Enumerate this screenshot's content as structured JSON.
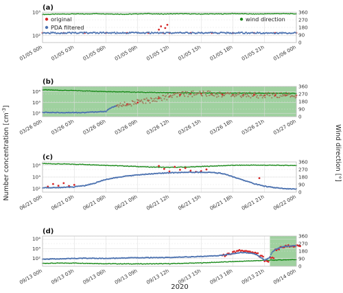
{
  "figure": {
    "year_label": "2020",
    "left_axis_title": "Number concentration [cm",
    "left_axis_title_sup": "-3",
    "left_axis_title_end": "]",
    "right_axis_title": "Wind direction [°]"
  },
  "colors": {
    "original": "#d62728",
    "filtered": "#4c72b0",
    "wind": "#1a8a1a",
    "shade": "#7fc27f",
    "grid": "#dcdcdc",
    "frame": "#bdbdbd"
  },
  "legend": {
    "original": "original",
    "filtered": "PDA filtered",
    "wind": "wind direction"
  },
  "chart_data": [
    {
      "type": "scatter",
      "panel": "(a)",
      "x_ticks": [
        "01/05 00h",
        "01/05 03h",
        "01/05 06h",
        "01/05 09h",
        "01/05 12h",
        "01/05 15h",
        "01/05 18h",
        "01/05 21h",
        "01/06 00h"
      ],
      "y_scale": "log",
      "ylim": [
        50,
        1000
      ],
      "y_ticks": [
        "10²",
        "10³"
      ],
      "y_tick_values": [
        100,
        1000
      ],
      "y2lim": [
        0,
        360
      ],
      "y2_ticks": [
        0,
        90,
        180,
        270,
        360
      ],
      "legend_position": "upper",
      "shaded": [],
      "series": [
        {
          "name": "original",
          "x": [
            0,
            2,
            4,
            6,
            8,
            10,
            11.0,
            11.2,
            11.4,
            11.6,
            11.8,
            12,
            14,
            16,
            18,
            20,
            22,
            24
          ],
          "y": [
            130,
            130,
            130,
            130,
            130,
            130,
            180,
            250,
            130,
            210,
            290,
            130,
            130,
            130,
            130,
            130,
            130,
            130
          ]
        },
        {
          "name": "PDA filtered",
          "x": [
            0,
            2,
            4,
            6,
            8,
            10,
            11,
            12,
            14,
            16,
            18,
            20,
            22,
            24
          ],
          "y": [
            130,
            130,
            130,
            130,
            130,
            130,
            130,
            130,
            130,
            130,
            130,
            130,
            130,
            130
          ]
        },
        {
          "name": "wind direction",
          "x": [
            0,
            1,
            2,
            3,
            4,
            5,
            6,
            7,
            8,
            9,
            10,
            11,
            12,
            13,
            14,
            15,
            16,
            17,
            18,
            19,
            20,
            21,
            22,
            23,
            24
          ],
          "y": [
            335,
            338,
            340,
            342,
            340,
            345,
            342,
            340,
            338,
            342,
            345,
            340,
            342,
            344,
            342,
            340,
            342,
            341,
            345,
            343,
            340,
            342,
            345,
            344,
            342
          ]
        }
      ]
    },
    {
      "type": "scatter",
      "panel": "(b)",
      "x_ticks": [
        "03/26 00h",
        "03/26 03h",
        "03/26 06h",
        "03/26 09h",
        "03/26 12h",
        "03/26 15h",
        "03/26 18h",
        "03/26 21h",
        "03/27 00h"
      ],
      "y_scale": "log",
      "ylim": [
        50,
        30000
      ],
      "y_ticks": [
        "10²",
        "10³",
        "10⁴"
      ],
      "y_tick_values": [
        100,
        1000,
        10000
      ],
      "y2lim": [
        0,
        360
      ],
      "y2_ticks": [
        0,
        90,
        180,
        270,
        360
      ],
      "shaded": [
        [
          0,
          24
        ]
      ],
      "series": [
        {
          "name": "original",
          "x": [
            7,
            8,
            9,
            10,
            11,
            12,
            13,
            14,
            15,
            16,
            17,
            18,
            19,
            20,
            21,
            22,
            23,
            24
          ],
          "y": [
            500,
            700,
            1000,
            1500,
            2500,
            3500,
            5000,
            6000,
            6500,
            6000,
            5500,
            5000,
            5000,
            5000,
            4500,
            4500,
            4500,
            4500
          ]
        },
        {
          "name": "PDA filtered",
          "x": [
            0,
            2,
            4,
            6,
            7,
            8,
            9,
            10,
            11,
            12,
            13,
            14,
            15,
            16,
            17,
            18,
            19,
            20,
            21,
            22,
            23,
            24
          ],
          "y": [
            120,
            120,
            120,
            150,
            500,
            700,
            1000,
            1500,
            2500,
            3500,
            5000,
            6000,
            6500,
            6000,
            5500,
            5000,
            5000,
            5000,
            4500,
            4500,
            4500,
            4500
          ]
        },
        {
          "name": "wind direction",
          "x": [
            0,
            3,
            6,
            9,
            12,
            15,
            18,
            21,
            24
          ],
          "y": [
            320,
            310,
            300,
            292,
            286,
            282,
            280,
            278,
            276
          ]
        }
      ]
    },
    {
      "type": "scatter",
      "panel": "(c)",
      "x_ticks": [
        "06/21 00h",
        "06/21 03h",
        "06/21 06h",
        "06/21 09h",
        "06/21 12h",
        "06/21 15h",
        "06/21 18h",
        "06/21 21h",
        "06/22 00h"
      ],
      "y_scale": "log",
      "ylim": [
        50,
        20000
      ],
      "y_ticks": [
        "10²",
        "10³",
        "10⁴"
      ],
      "y_tick_values": [
        100,
        1000,
        10000
      ],
      "y2lim": [
        0,
        360
      ],
      "y2_ticks": [
        0,
        90,
        180,
        270,
        360
      ],
      "shaded": [],
      "series": [
        {
          "name": "original",
          "x": [
            0.5,
            1,
            1.5,
            2,
            2.5,
            3,
            11.0,
            11.5,
            12.0,
            12.5,
            13.0,
            13.5,
            14.0,
            14.5,
            15.0,
            15.5,
            20.5
          ],
          "y": [
            150,
            250,
            180,
            300,
            170,
            210,
            9000,
            5000,
            3000,
            7500,
            4200,
            6000,
            3500,
            2800,
            3200,
            4500,
            800
          ]
        },
        {
          "name": "PDA filtered",
          "x": [
            0,
            1,
            2,
            3,
            4,
            5,
            6,
            8,
            10,
            12,
            14,
            16,
            17,
            18,
            19,
            20,
            21,
            22,
            23,
            24
          ],
          "y": [
            120,
            120,
            130,
            140,
            180,
            300,
            600,
            1200,
            1800,
            2300,
            2600,
            2500,
            2000,
            1000,
            500,
            260,
            160,
            120,
            100,
            95
          ]
        },
        {
          "name": "wind direction",
          "x": [
            0,
            2,
            4,
            6,
            8,
            10,
            12,
            14,
            16,
            18,
            20,
            22,
            24
          ],
          "y": [
            340,
            335,
            330,
            320,
            310,
            300,
            295,
            300,
            310,
            320,
            322,
            320,
            318
          ]
        }
      ]
    },
    {
      "type": "scatter",
      "panel": "(d)",
      "x_ticks": [
        "09/13 00h",
        "09/13 03h",
        "09/13 06h",
        "09/13 09h",
        "09/13 12h",
        "09/13 15h",
        "09/13 18h",
        "09/13 21h",
        "09/14 00h"
      ],
      "y_scale": "log",
      "ylim": [
        15,
        20000
      ],
      "y_ticks": [
        "10²",
        "10³",
        "10⁴"
      ],
      "y_tick_values": [
        100,
        1000,
        10000
      ],
      "y2lim": [
        0,
        360
      ],
      "y2_ticks": [
        0,
        90,
        180,
        270,
        360
      ],
      "shaded": [
        [
          21.5,
          24
        ]
      ],
      "series": [
        {
          "name": "original",
          "x": [
            17,
            17.5,
            18,
            18.5,
            19,
            19.5,
            20,
            20.5,
            21,
            21.5,
            22,
            22.5,
            23,
            23.5,
            24
          ],
          "y": [
            200,
            300,
            450,
            600,
            550,
            500,
            350,
            150,
            50,
            120,
            800,
            1500,
            2000,
            1800,
            2200
          ]
        },
        {
          "name": "PDA filtered",
          "x": [
            0,
            2,
            4,
            6,
            8,
            10,
            12,
            14,
            16,
            17,
            18,
            19,
            20,
            20.5,
            21,
            21.5,
            22,
            23,
            24
          ],
          "y": [
            80,
            90,
            100,
            95,
            110,
            115,
            120,
            140,
            170,
            200,
            300,
            400,
            300,
            150,
            60,
            120,
            800,
            1800,
            2000
          ]
        },
        {
          "name": "wind direction",
          "x": [
            0,
            3,
            6,
            9,
            12,
            15,
            18,
            21,
            24
          ],
          "y": [
            35,
            38,
            30,
            28,
            30,
            40,
            55,
            70,
            80
          ]
        }
      ]
    }
  ]
}
